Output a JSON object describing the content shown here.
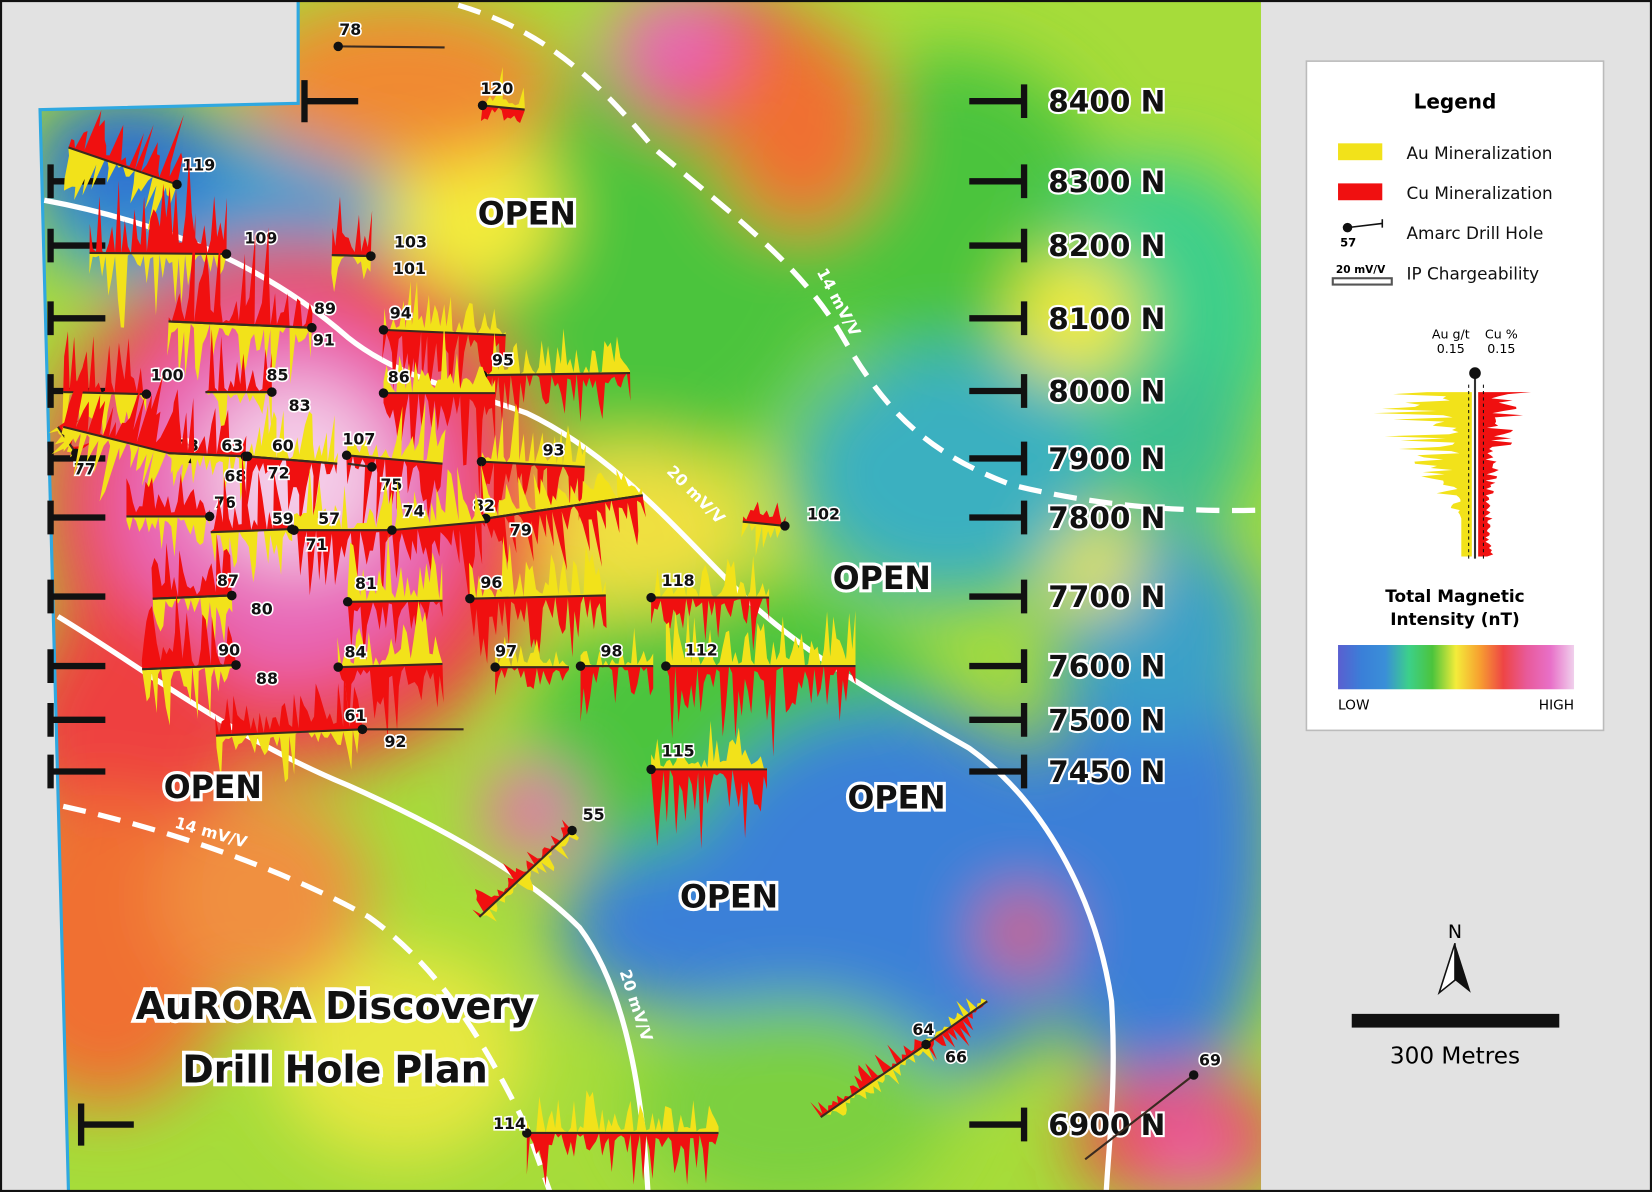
{
  "title": {
    "line1": "AuRORA Discovery",
    "line2": "Drill Hole Plan"
  },
  "open_labels": [
    "OPEN",
    "OPEN",
    "OPEN",
    "OPEN",
    "OPEN"
  ],
  "northings": [
    "8400 N",
    "8300 N",
    "8200 N",
    "8100 N",
    "8000 N",
    "7900 N",
    "7800 N",
    "7700 N",
    "7600 N",
    "7500 N",
    "7450 N",
    "6900 N"
  ],
  "ip_contours": {
    "inner": "20 mV/V",
    "outer": "14 mV/V"
  },
  "drill_holes": [
    "78",
    "120",
    "119",
    "109",
    "103",
    "101",
    "89",
    "91",
    "94",
    "95",
    "100",
    "85",
    "83",
    "86",
    "77",
    "73",
    "63",
    "68",
    "60",
    "72",
    "107",
    "75",
    "93",
    "76",
    "82",
    "79",
    "59",
    "57",
    "71",
    "74",
    "102",
    "118",
    "87",
    "80",
    "81",
    "96",
    "90",
    "88",
    "84",
    "97",
    "98",
    "112",
    "61",
    "92",
    "115",
    "55",
    "64",
    "66",
    "69",
    "114"
  ],
  "legend": {
    "title": "Legend",
    "items": [
      {
        "label": "Au Mineralization",
        "color": "#f2e21a"
      },
      {
        "label": "Cu Mineralization",
        "color": "#f01010"
      },
      {
        "label": "Amarc Drill Hole",
        "sample_hole": "57"
      },
      {
        "label": "IP Chargeability",
        "sample_value": "20 mV/V"
      }
    ],
    "au_axis": {
      "label": "Au g/t",
      "value": "0.15"
    },
    "cu_axis": {
      "label": "Cu %",
      "value": "0.15"
    },
    "magnetic_title_1": "Total Magnetic",
    "magnetic_title_2": "Intensity (nT)",
    "scale_low": "LOW",
    "scale_high": "HIGH",
    "ramp_colors": [
      "#5a5fd0",
      "#3a7fd8",
      "#3a8fd8",
      "#3cd08a",
      "#4cc43c",
      "#f4ec3a",
      "#f7a030",
      "#ee4545",
      "#e85a9a",
      "#e870c8",
      "#f0d0ec"
    ]
  },
  "scale_bar": {
    "label": "300 Metres",
    "north": "N"
  }
}
